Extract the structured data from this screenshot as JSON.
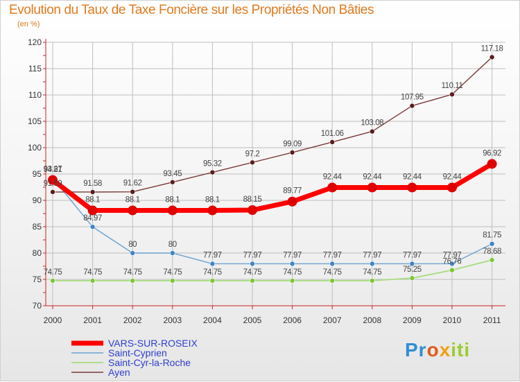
{
  "title": "Evolution du Taux de Taxe Foncière sur les Propriétés Non Bâties",
  "subtitle": "(en %)",
  "logo": {
    "text": "Proxiti"
  },
  "chart_data": {
    "type": "line",
    "title": "Evolution du Taux de Taxe Foncière sur les Propriétés Non Bâties",
    "ylabel": "(en %)",
    "xlabel": "",
    "x": [
      "2000",
      "2001",
      "2002",
      "2003",
      "2004",
      "2005",
      "2006",
      "2007",
      "2008",
      "2009",
      "2010",
      "2011"
    ],
    "ylim": [
      70,
      120
    ],
    "yticks": [
      70,
      75,
      80,
      85,
      90,
      95,
      100,
      105,
      110,
      115,
      120
    ],
    "grid": true,
    "legend_position": "bottom-left",
    "series": [
      {
        "name": "VARS-SUR-ROSEIX",
        "color": "#ff0000",
        "marker": "#e00000",
        "values": [
          93.87,
          88.1,
          88.1,
          88.1,
          88.1,
          88.15,
          89.77,
          92.44,
          92.44,
          92.44,
          92.44,
          96.92
        ],
        "labels": [
          "93.87",
          "88.1",
          "88.1",
          "88.1",
          "88.1",
          "88.15",
          "89.77",
          "92.44",
          "92.44",
          "92.44",
          "92.44",
          "96.92"
        ]
      },
      {
        "name": "Saint-Cyprien",
        "color": "#6aa2d2",
        "marker": "#3f85c6",
        "values": [
          94.21,
          84.97,
          80,
          80,
          77.97,
          77.97,
          77.97,
          77.97,
          77.97,
          77.97,
          77.97,
          81.75
        ],
        "labels": [
          "94.21",
          "84.97",
          "80",
          "80",
          "77.97",
          "77.97",
          "77.97",
          "77.97",
          "77.97",
          "77.97",
          "77.97",
          "81.75"
        ]
      },
      {
        "name": "Saint-Cyr-la-Roche",
        "color": "#a6dc7c",
        "marker": "#7cc63a",
        "values": [
          74.75,
          74.75,
          74.75,
          74.75,
          74.75,
          74.75,
          74.75,
          74.75,
          74.75,
          75.25,
          76.76,
          78.68
        ],
        "labels": [
          "74.75",
          "74.75",
          "74.75",
          "74.75",
          "74.75",
          "74.75",
          "74.75",
          "74.75",
          "74.75",
          "75.25",
          "76.76",
          "78.68"
        ]
      },
      {
        "name": "Ayen",
        "color": "#7a3a3a",
        "marker": "#5a1d1d",
        "values": [
          91.59,
          91.58,
          91.62,
          93.45,
          95.32,
          97.2,
          99.09,
          101.06,
          103.08,
          107.95,
          110.11,
          117.18
        ],
        "labels": [
          "91.59",
          "91.58",
          "91.62",
          "93.45",
          "95.32",
          "97.2",
          "99.09",
          "101.06",
          "103.08",
          "107.95",
          "110.11",
          "117.18"
        ]
      }
    ]
  }
}
